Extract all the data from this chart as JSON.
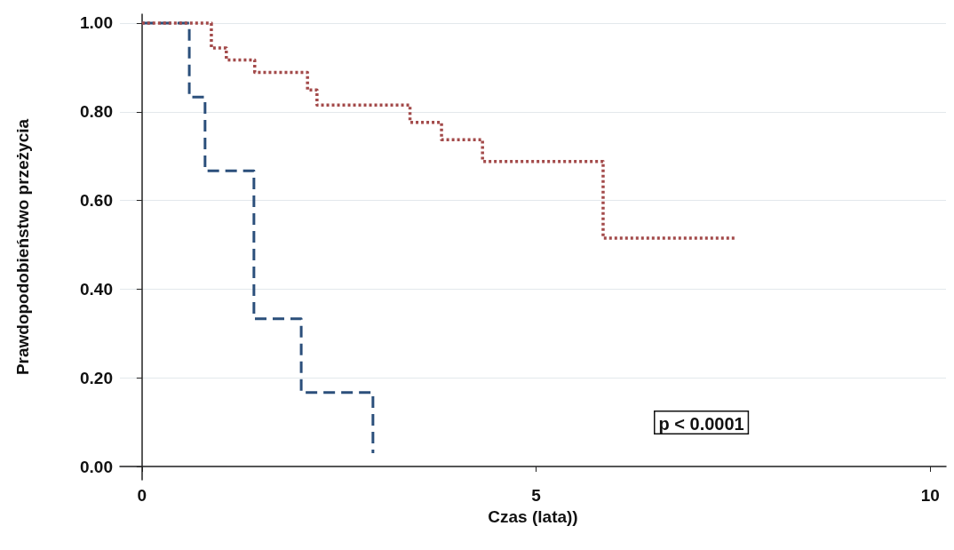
{
  "chart_data": {
    "type": "step",
    "xlabel": "Czas (lata))",
    "ylabel": "Prawdopodobieństwo przeżycia",
    "series": [
      {
        "color": "#2b4f7b",
        "line_style": "dashed",
        "x": [
          0,
          0.6,
          0.8,
          1.42,
          2.02,
          2.93
        ],
        "values": [
          1,
          0.833,
          0.667,
          0.333,
          0.167,
          0.03
        ]
      },
      {
        "color": "#a34a4a",
        "line_style": "dotted",
        "x": [
          0,
          0.88,
          1.07,
          1.43,
          2.1,
          2.22,
          3.4,
          3.8,
          4.32,
          5.85,
          7.53
        ],
        "values": [
          1,
          0.944,
          0.917,
          0.889,
          0.849,
          0.815,
          0.776,
          0.737,
          0.688,
          0.515,
          0.515
        ]
      }
    ],
    "xlim": [
      -0.28,
      10.2
    ],
    "xticks": [
      0,
      5,
      10
    ],
    "ylim": [
      -0.03,
      1.02
    ],
    "yticks": [
      {
        "value": 0,
        "label": "0.00"
      },
      {
        "value": 0.2,
        "label": "0.20"
      },
      {
        "value": 0.4,
        "label": "0.40"
      },
      {
        "value": 0.6,
        "label": "0.60"
      },
      {
        "value": 0.8,
        "label": "0.80"
      },
      {
        "value": 1,
        "label": "1.00"
      }
    ],
    "grid": "y",
    "marker": "none",
    "annotations": [
      "p < 0.0001"
    ]
  }
}
